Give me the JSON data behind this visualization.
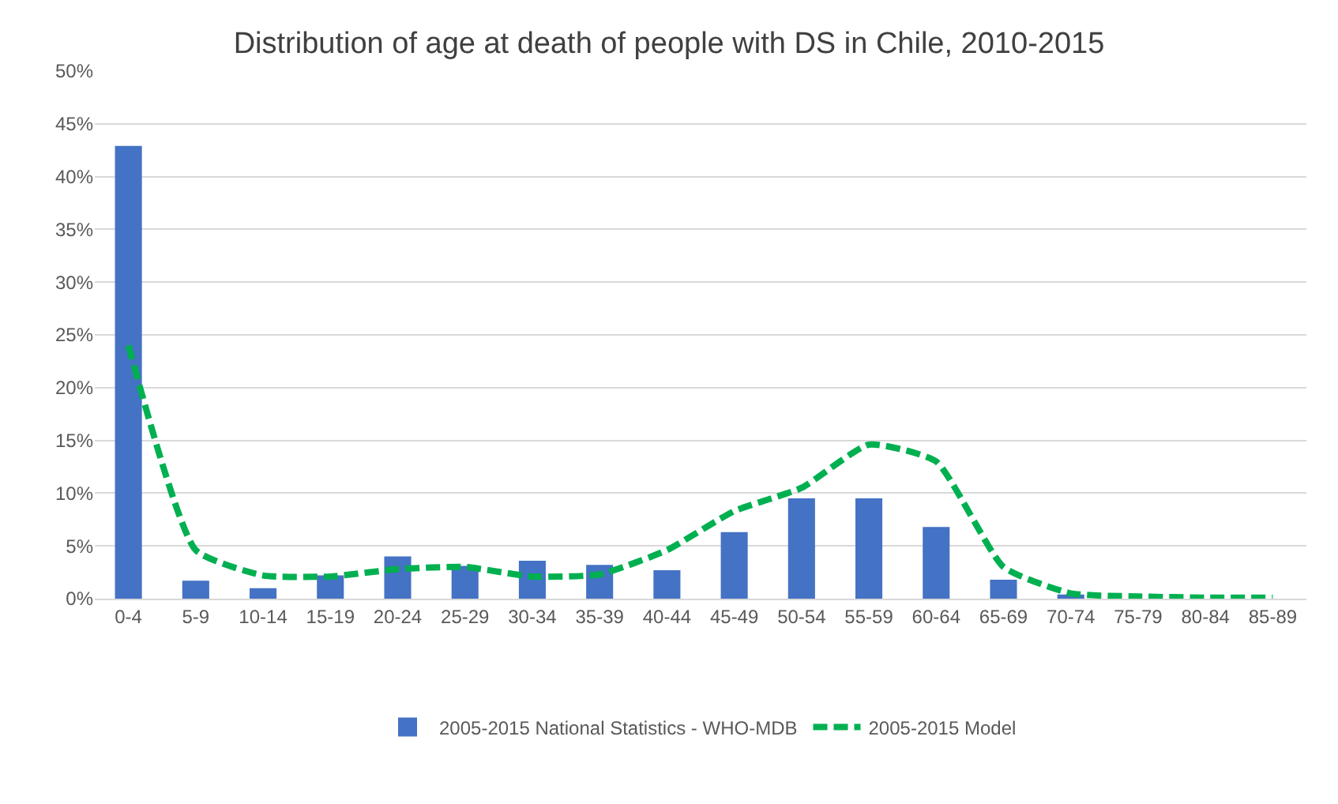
{
  "chart_data": {
    "type": "bar",
    "title": "Distribution of age at death of people with DS in Chile, 2010-2015",
    "categories": [
      "0-4",
      "5-9",
      "10-14",
      "15-19",
      "20-24",
      "25-29",
      "30-34",
      "35-39",
      "40-44",
      "45-49",
      "50-54",
      "55-59",
      "60-64",
      "65-69",
      "70-74",
      "75-79",
      "80-84",
      "85-89"
    ],
    "series": [
      {
        "name": "2005-2015 National Statistics - WHO-MDB",
        "color": "#4472c4",
        "values": [
          42.9,
          1.7,
          1.0,
          2.2,
          4.0,
          3.1,
          3.6,
          3.2,
          2.7,
          6.3,
          9.5,
          9.5,
          6.8,
          1.8,
          0.4,
          0,
          0,
          0
        ]
      },
      {
        "name": "2005-2015 Model",
        "type": "line",
        "color": "#00b050",
        "line_style": "dashed",
        "values": [
          24.0,
          4.6,
          2.2,
          2.1,
          2.8,
          3.0,
          2.1,
          2.3,
          4.6,
          8.3,
          10.5,
          14.6,
          13.0,
          3.0,
          0.5,
          0.2,
          0.1,
          0.1
        ]
      }
    ],
    "ylim": [
      0,
      50
    ],
    "yticks": [
      {
        "value": 0,
        "label": "0%"
      },
      {
        "value": 5,
        "label": "5%"
      },
      {
        "value": 10,
        "label": "10%"
      },
      {
        "value": 15,
        "label": "15%"
      },
      {
        "value": 20,
        "label": "20%"
      },
      {
        "value": 25,
        "label": "25%"
      },
      {
        "value": 30,
        "label": "30%"
      },
      {
        "value": 35,
        "label": "35%"
      },
      {
        "value": 40,
        "label": "40%"
      },
      {
        "value": 45,
        "label": "45%"
      },
      {
        "value": 50,
        "label": "50%"
      }
    ],
    "grid": "y",
    "legend": "bottom"
  }
}
